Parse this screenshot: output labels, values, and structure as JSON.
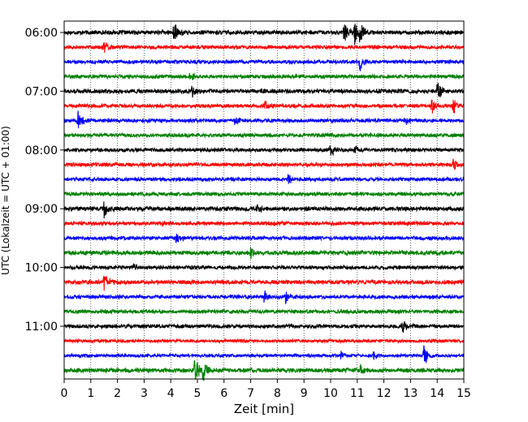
{
  "chart_data": {
    "type": "line",
    "title": "",
    "xlabel": "Zeit  [min]",
    "ylabel": "UTC (Lokalzeit = UTC + 01:00)",
    "xlim": [
      0,
      15
    ],
    "x_ticks": [
      0,
      1,
      2,
      3,
      4,
      5,
      6,
      7,
      8,
      9,
      10,
      11,
      12,
      13,
      14,
      15
    ],
    "row_minutes": 15,
    "row_labels": [
      "06:00",
      "07:00",
      "08:00",
      "09:00",
      "10:00",
      "11:00"
    ],
    "label_every_rows": 4,
    "vertical_grid": true,
    "grid_style": "dotted",
    "colors_cycle": [
      "#000000",
      "#ff0000",
      "#0000ff",
      "#008000"
    ],
    "traces": [
      {
        "start": "06:00",
        "color": "#000000",
        "noise": 0.35,
        "events": [
          {
            "t": 4.1,
            "amp": 1.2
          },
          {
            "t": 10.5,
            "amp": 1.0
          },
          {
            "t": 10.9,
            "amp": 1.3
          },
          {
            "t": 11.1,
            "amp": 1.1
          }
        ]
      },
      {
        "start": "06:15",
        "color": "#ff0000",
        "noise": 0.3,
        "events": [
          {
            "t": 1.5,
            "amp": 0.5
          }
        ]
      },
      {
        "start": "06:30",
        "color": "#0000ff",
        "noise": 0.3,
        "events": [
          {
            "t": 11.1,
            "amp": 1.0
          }
        ]
      },
      {
        "start": "06:45",
        "color": "#008000",
        "noise": 0.3,
        "events": [
          {
            "t": 4.7,
            "amp": 0.6
          }
        ]
      },
      {
        "start": "07:00",
        "color": "#000000",
        "noise": 0.35,
        "events": [
          {
            "t": 4.8,
            "amp": 0.7
          },
          {
            "t": 14.0,
            "amp": 1.1
          }
        ]
      },
      {
        "start": "07:15",
        "color": "#ff0000",
        "noise": 0.3,
        "events": [
          {
            "t": 7.5,
            "amp": 0.5
          },
          {
            "t": 13.8,
            "amp": 0.9
          },
          {
            "t": 14.6,
            "amp": 0.9
          }
        ]
      },
      {
        "start": "07:30",
        "color": "#0000ff",
        "noise": 0.3,
        "events": [
          {
            "t": 0.5,
            "amp": 1.1
          },
          {
            "t": 6.4,
            "amp": 0.5
          },
          {
            "t": 12.8,
            "amp": 0.5
          }
        ]
      },
      {
        "start": "07:45",
        "color": "#008000",
        "noise": 0.3,
        "events": []
      },
      {
        "start": "08:00",
        "color": "#000000",
        "noise": 0.3,
        "events": [
          {
            "t": 10.0,
            "amp": 0.6
          },
          {
            "t": 10.9,
            "amp": 0.5
          }
        ]
      },
      {
        "start": "08:15",
        "color": "#ff0000",
        "noise": 0.3,
        "events": [
          {
            "t": 14.6,
            "amp": 0.8
          }
        ]
      },
      {
        "start": "08:30",
        "color": "#0000ff",
        "noise": 0.3,
        "events": [
          {
            "t": 8.4,
            "amp": 0.6
          }
        ]
      },
      {
        "start": "08:45",
        "color": "#008000",
        "noise": 0.3,
        "events": []
      },
      {
        "start": "09:00",
        "color": "#000000",
        "noise": 0.35,
        "events": [
          {
            "t": 1.5,
            "amp": 1.0
          },
          {
            "t": 7.2,
            "amp": 0.5
          }
        ]
      },
      {
        "start": "09:15",
        "color": "#ff0000",
        "noise": 0.3,
        "events": [
          {
            "t": 3.6,
            "amp": 0.4
          }
        ]
      },
      {
        "start": "09:30",
        "color": "#0000ff",
        "noise": 0.3,
        "events": [
          {
            "t": 4.2,
            "amp": 0.6
          }
        ]
      },
      {
        "start": "09:45",
        "color": "#008000",
        "noise": 0.35,
        "events": [
          {
            "t": 7.0,
            "amp": 0.6
          }
        ]
      },
      {
        "start": "10:00",
        "color": "#000000",
        "noise": 0.3,
        "events": [
          {
            "t": 2.6,
            "amp": 0.4
          }
        ]
      },
      {
        "start": "10:15",
        "color": "#ff0000",
        "noise": 0.35,
        "events": [
          {
            "t": 1.5,
            "amp": 1.0
          }
        ]
      },
      {
        "start": "10:30",
        "color": "#0000ff",
        "noise": 0.3,
        "events": [
          {
            "t": 7.5,
            "amp": 0.7
          },
          {
            "t": 8.3,
            "amp": 0.6
          }
        ]
      },
      {
        "start": "10:45",
        "color": "#008000",
        "noise": 0.3,
        "events": []
      },
      {
        "start": "11:00",
        "color": "#000000",
        "noise": 0.3,
        "events": [
          {
            "t": 12.7,
            "amp": 0.7
          }
        ]
      },
      {
        "start": "11:15",
        "color": "#ff0000",
        "noise": 0.25,
        "events": []
      },
      {
        "start": "11:30",
        "color": "#0000ff",
        "noise": 0.25,
        "events": [
          {
            "t": 10.4,
            "amp": 0.5
          },
          {
            "t": 11.6,
            "amp": 0.5
          },
          {
            "t": 13.5,
            "amp": 1.1
          }
        ]
      },
      {
        "start": "11:45",
        "color": "#008000",
        "noise": 0.35,
        "events": [
          {
            "t": 4.9,
            "amp": 1.4
          },
          {
            "t": 5.2,
            "amp": 1.2
          },
          {
            "t": 11.1,
            "amp": 0.7
          }
        ]
      }
    ]
  }
}
